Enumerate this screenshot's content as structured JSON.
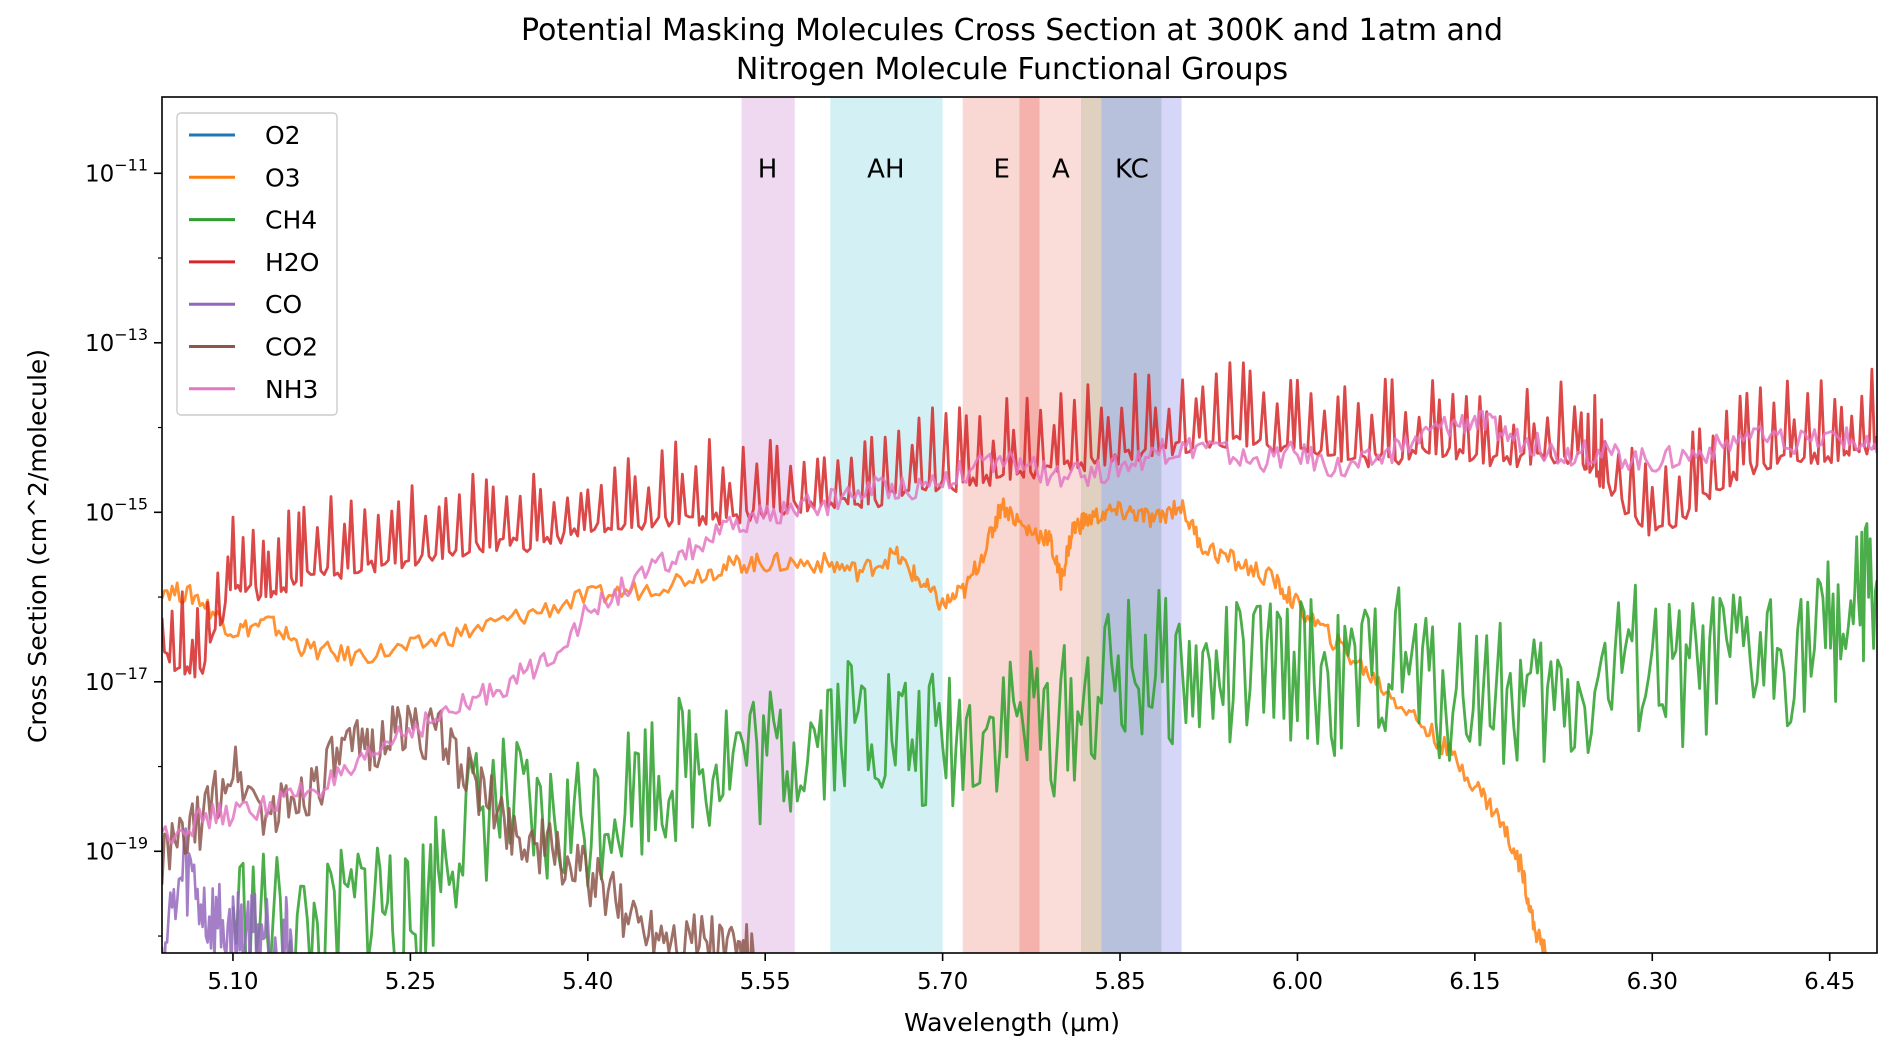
{
  "chart_data": {
    "type": "line",
    "title_line1": "Potential Masking Molecules Cross Section at 300K and 1atm and",
    "title_line2": "Nitrogen Molecule Functional Groups",
    "xlabel": "Wavelength (μm)",
    "ylabel": "Cross Section (cm^2/molecule)",
    "xlim": [
      5.04,
      6.49
    ],
    "ylim_log10": [
      -20.2,
      -10.1
    ],
    "y_scale": "log",
    "x_ticks": [
      {
        "value": 5.1,
        "label": "5.10"
      },
      {
        "value": 5.25,
        "label": "5.25"
      },
      {
        "value": 5.4,
        "label": "5.40"
      },
      {
        "value": 5.55,
        "label": "5.55"
      },
      {
        "value": 5.7,
        "label": "5.70"
      },
      {
        "value": 5.85,
        "label": "5.85"
      },
      {
        "value": 6.0,
        "label": "6.00"
      },
      {
        "value": 6.15,
        "label": "6.15"
      },
      {
        "value": 6.3,
        "label": "6.30"
      },
      {
        "value": 6.45,
        "label": "6.45"
      }
    ],
    "y_ticks": [
      {
        "value": -11,
        "base": "10",
        "exp": "−11"
      },
      {
        "value": -13,
        "base": "10",
        "exp": "−13"
      },
      {
        "value": -15,
        "base": "10",
        "exp": "−15"
      },
      {
        "value": -17,
        "base": "10",
        "exp": "−17"
      },
      {
        "value": -19,
        "base": "10",
        "exp": "−19"
      }
    ],
    "legend_position": "upper-left",
    "bands": [
      {
        "label": "H",
        "x0": 5.53,
        "x1": 5.575,
        "color": "#e4bfe8",
        "alpha": 0.6
      },
      {
        "label": "AH",
        "x0": 5.605,
        "x1": 5.7,
        "color": "#9edfe6",
        "alpha": 0.45
      },
      {
        "label": "E",
        "x0": 5.717,
        "x1": 5.782,
        "color": "#f19a91",
        "alpha": 0.4
      },
      {
        "label": "",
        "x0": 5.765,
        "x1": 5.782,
        "color": "#ef6e63",
        "alpha": 0.35
      },
      {
        "label": "A",
        "x0": 5.782,
        "x1": 5.817,
        "color": "#f4b3aa",
        "alpha": 0.45
      },
      {
        "label": "",
        "x0": 5.817,
        "x1": 5.834,
        "color": "#c7a98d",
        "alpha": 0.55
      },
      {
        "label": "KC",
        "x0": 5.834,
        "x1": 5.885,
        "color": "#8797c4",
        "alpha": 0.6
      },
      {
        "label": "",
        "x0": 5.885,
        "x1": 5.902,
        "color": "#b9baf3",
        "alpha": 0.6
      }
    ],
    "band_label_positions": [
      {
        "label": "H",
        "x": 5.552
      },
      {
        "label": "AH",
        "x": 5.652
      },
      {
        "label": "E",
        "x": 5.75
      },
      {
        "label": "A",
        "x": 5.8
      },
      {
        "label": "KC",
        "x": 5.86
      }
    ],
    "band_label_y_log10": -11.05,
    "series": [
      {
        "name": "O2",
        "color": "#1f77b4",
        "x": [],
        "log10_y": []
      },
      {
        "name": "O3",
        "color": "#ff7f0e",
        "x": [
          5.04,
          5.07,
          5.1,
          5.13,
          5.16,
          5.2,
          5.25,
          5.3,
          5.35,
          5.4,
          5.45,
          5.5,
          5.53,
          5.56,
          5.6,
          5.63,
          5.66,
          5.68,
          5.7,
          5.72,
          5.74,
          5.75,
          5.77,
          5.79,
          5.8,
          5.81,
          5.82,
          5.84,
          5.86,
          5.88,
          5.9,
          5.92,
          5.95,
          5.98,
          6.0,
          6.03,
          6.06,
          6.09,
          6.12,
          6.15,
          6.17,
          6.19,
          6.2,
          6.21
        ],
        "log10_y": [
          -15.9,
          -16.0,
          -16.4,
          -16.3,
          -16.6,
          -16.7,
          -16.6,
          -16.4,
          -16.2,
          -16.0,
          -15.9,
          -15.7,
          -15.6,
          -15.6,
          -15.6,
          -15.7,
          -15.5,
          -15.8,
          -16.1,
          -15.9,
          -15.3,
          -14.9,
          -15.2,
          -15.3,
          -15.8,
          -15.2,
          -15.1,
          -15.0,
          -15.0,
          -15.1,
          -14.9,
          -15.4,
          -15.6,
          -15.8,
          -16.1,
          -16.5,
          -16.9,
          -17.3,
          -17.7,
          -18.2,
          -18.6,
          -19.2,
          -19.9,
          -20.2
        ]
      },
      {
        "name": "CH4",
        "color": "#2ca02c",
        "x": [
          5.1,
          5.14,
          5.18,
          5.22,
          5.25,
          5.28,
          5.32,
          5.36,
          5.4,
          5.44,
          5.48,
          5.52,
          5.56,
          5.6,
          5.64,
          5.68,
          5.72,
          5.76,
          5.8,
          5.84,
          5.88,
          5.92,
          5.96,
          6.0,
          6.04,
          6.08,
          6.12,
          6.16,
          6.2,
          6.24,
          6.28,
          6.32,
          6.36,
          6.4,
          6.44,
          6.47,
          6.49
        ],
        "log10_y": [
          -19.7,
          -19.9,
          -20.0,
          -19.4,
          -20.0,
          -18.9,
          -18.4,
          -18.8,
          -18.6,
          -18.2,
          -18.0,
          -17.8,
          -17.9,
          -17.5,
          -17.4,
          -17.8,
          -17.6,
          -17.4,
          -17.5,
          -17.0,
          -16.8,
          -17.0,
          -16.9,
          -16.8,
          -17.1,
          -16.7,
          -17.1,
          -17.0,
          -17.3,
          -17.2,
          -16.7,
          -17.0,
          -16.8,
          -16.7,
          -16.5,
          -16.2,
          -15.8
        ]
      },
      {
        "name": "H2O",
        "color": "#d62728",
        "x": [
          5.04,
          5.07,
          5.1,
          5.13,
          5.16,
          5.2,
          5.24,
          5.28,
          5.32,
          5.36,
          5.4,
          5.44,
          5.48,
          5.52,
          5.56,
          5.6,
          5.64,
          5.68,
          5.72,
          5.76,
          5.8,
          5.84,
          5.88,
          5.92,
          5.96,
          6.0,
          6.04,
          6.08,
          6.12,
          6.16,
          6.2,
          6.24,
          6.26,
          6.3,
          6.34,
          6.38,
          6.42,
          6.46,
          6.49
        ],
        "log10_y": [
          -16.6,
          -16.9,
          -15.8,
          -15.9,
          -15.7,
          -15.6,
          -15.5,
          -15.4,
          -15.3,
          -15.3,
          -15.1,
          -15.1,
          -15.0,
          -15.0,
          -14.9,
          -14.8,
          -14.8,
          -14.6,
          -14.6,
          -14.5,
          -14.4,
          -14.3,
          -14.2,
          -14.1,
          -14.1,
          -14.2,
          -14.3,
          -14.3,
          -14.2,
          -14.3,
          -14.3,
          -14.3,
          -14.6,
          -15.2,
          -14.8,
          -14.4,
          -14.3,
          -14.3,
          -14.1
        ]
      },
      {
        "name": "CO",
        "color": "#9467bd",
        "x": [
          5.04,
          5.06,
          5.08,
          5.1,
          5.12,
          5.14,
          5.15
        ],
        "log10_y": [
          -20.2,
          -19.2,
          -19.8,
          -20.0,
          -19.9,
          -20.0,
          -20.2
        ]
      },
      {
        "name": "CO2",
        "color": "#8c564b",
        "x": [
          5.04,
          5.07,
          5.1,
          5.13,
          5.16,
          5.19,
          5.22,
          5.25,
          5.28,
          5.31,
          5.34,
          5.37,
          5.4,
          5.43,
          5.46,
          5.49,
          5.52,
          5.54
        ],
        "log10_y": [
          -19.1,
          -18.7,
          -18.0,
          -18.6,
          -18.3,
          -17.9,
          -17.7,
          -17.5,
          -17.7,
          -18.3,
          -18.8,
          -19.0,
          -19.3,
          -19.7,
          -19.9,
          -20.0,
          -20.1,
          -20.2
        ]
      },
      {
        "name": "NH3",
        "color": "#e377c2",
        "x": [
          5.04,
          5.08,
          5.12,
          5.16,
          5.2,
          5.24,
          5.28,
          5.32,
          5.36,
          5.4,
          5.44,
          5.48,
          5.52,
          5.56,
          5.6,
          5.64,
          5.68,
          5.72,
          5.76,
          5.8,
          5.84,
          5.88,
          5.92,
          5.96,
          6.0,
          6.04,
          6.08,
          6.12,
          6.15,
          6.18,
          6.22,
          6.26,
          6.3,
          6.34,
          6.38,
          6.42,
          6.46,
          6.49
        ],
        "log10_y": [
          -18.8,
          -18.6,
          -18.5,
          -18.3,
          -18.1,
          -17.6,
          -17.4,
          -17.1,
          -16.8,
          -16.2,
          -15.8,
          -15.5,
          -15.2,
          -15.0,
          -14.9,
          -14.7,
          -14.7,
          -14.5,
          -14.4,
          -14.6,
          -14.5,
          -14.3,
          -14.2,
          -14.4,
          -14.3,
          -14.5,
          -14.3,
          -14.0,
          -13.9,
          -14.1,
          -14.3,
          -14.3,
          -14.4,
          -14.3,
          -14.1,
          -14.2,
          -14.1,
          -14.3
        ]
      }
    ]
  }
}
